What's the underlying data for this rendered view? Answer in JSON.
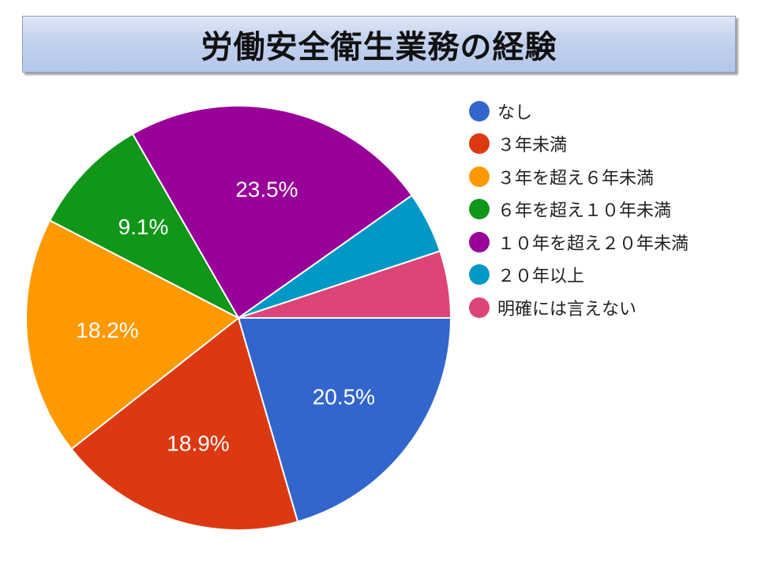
{
  "title": "労働安全衛生業務の経験",
  "chart_data": {
    "type": "pie",
    "categories": [
      "なし",
      "３年未満",
      "３年を超え６年未満",
      "６年を超え１０年未満",
      "１０年を超え２０年未満",
      "２０年以上",
      "明確には言えない"
    ],
    "values": [
      20.5,
      18.9,
      18.2,
      9.1,
      23.5,
      4.7,
      5.1
    ],
    "data_labels": [
      "20.5%",
      "18.9%",
      "18.2%",
      "9.1%",
      "23.5%",
      "",
      ""
    ],
    "colors": [
      "#3366cc",
      "#dc3912",
      "#ff9900",
      "#109618",
      "#990099",
      "#0099c6",
      "#dd4477"
    ],
    "start_angle_deg": 90,
    "direction": "clockwise-from-east",
    "legend_position": "right"
  }
}
